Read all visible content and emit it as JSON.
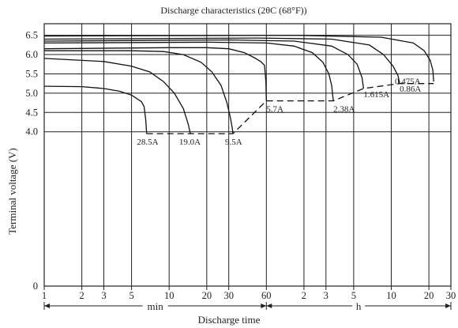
{
  "chart_data": {
    "type": "line",
    "title": "Discharge characteristics (20°C (68°F))",
    "title_display": "Discharge characteristics (2θC (68°F))",
    "ylabel": "Terminal    voltage (V)",
    "xlabel": "Discharge  time",
    "x_scale": "log",
    "x_unit_min": "min",
    "x_unit_h": "h",
    "xlim_minutes": [
      1,
      1800
    ],
    "ylim": [
      0,
      6.8
    ],
    "y_ticks": [
      {
        "v": 0,
        "label": "0"
      },
      {
        "v": 4.0,
        "label": "4.0"
      },
      {
        "v": 4.5,
        "label": "4.5"
      },
      {
        "v": 5.0,
        "label": "5.0"
      },
      {
        "v": 5.5,
        "label": "5.5"
      },
      {
        "v": 6.0,
        "label": "6.0"
      },
      {
        "v": 6.5,
        "label": "6.5"
      }
    ],
    "x_ticks": [
      {
        "minutes": 1,
        "label": "1"
      },
      {
        "minutes": 2,
        "label": "2"
      },
      {
        "minutes": 3,
        "label": "3"
      },
      {
        "minutes": 5,
        "label": "5"
      },
      {
        "minutes": 10,
        "label": "10"
      },
      {
        "minutes": 20,
        "label": "20"
      },
      {
        "minutes": 30,
        "label": "30"
      },
      {
        "minutes": 60,
        "label": "60"
      },
      {
        "minutes": 120,
        "label": "2"
      },
      {
        "minutes": 180,
        "label": "3"
      },
      {
        "minutes": 300,
        "label": "5"
      },
      {
        "minutes": 600,
        "label": "10"
      },
      {
        "minutes": 1200,
        "label": "20"
      },
      {
        "minutes": 1800,
        "label": "30"
      }
    ],
    "grid": true,
    "series": [
      {
        "name": "28.5A",
        "points": [
          [
            1,
            5.18
          ],
          [
            2,
            5.17
          ],
          [
            3,
            5.12
          ],
          [
            4,
            5.05
          ],
          [
            5,
            4.95
          ],
          [
            6,
            4.78
          ],
          [
            6.3,
            4.65
          ],
          [
            6.5,
            4.3
          ],
          [
            6.6,
            3.95
          ]
        ],
        "label_at": [
          6.2,
          3.75
        ]
      },
      {
        "name": "19.0A",
        "points": [
          [
            1,
            5.9
          ],
          [
            3,
            5.82
          ],
          [
            5,
            5.7
          ],
          [
            7,
            5.55
          ],
          [
            9,
            5.3
          ],
          [
            11,
            5.0
          ],
          [
            13,
            4.6
          ],
          [
            14.2,
            4.2
          ],
          [
            14.8,
            3.95
          ]
        ],
        "label_at": [
          13.5,
          3.75
        ]
      },
      {
        "name": "9.5A",
        "points": [
          [
            1,
            6.1
          ],
          [
            5,
            6.1
          ],
          [
            9,
            6.08
          ],
          [
            13,
            6.0
          ],
          [
            18,
            5.8
          ],
          [
            22,
            5.55
          ],
          [
            26,
            5.2
          ],
          [
            29,
            4.75
          ],
          [
            31,
            4.35
          ],
          [
            32,
            4.1
          ],
          [
            32.4,
            3.95
          ]
        ],
        "label_at": [
          31.5,
          3.75
        ]
      },
      {
        "name": "5.7A",
        "points": [
          [
            1,
            6.15
          ],
          [
            10,
            6.18
          ],
          [
            20,
            6.18
          ],
          [
            30,
            6.15
          ],
          [
            40,
            6.05
          ],
          [
            48,
            5.92
          ],
          [
            54,
            5.82
          ],
          [
            58,
            5.72
          ],
          [
            59.5,
            5.3
          ],
          [
            60,
            4.8
          ]
        ],
        "label_at": [
          60,
          4.6
        ]
      },
      {
        "name": "2.38A",
        "points": [
          [
            1,
            6.3
          ],
          [
            20,
            6.32
          ],
          [
            60,
            6.3
          ],
          [
            100,
            6.22
          ],
          [
            140,
            6.05
          ],
          [
            170,
            5.8
          ],
          [
            190,
            5.5
          ],
          [
            200,
            5.2
          ],
          [
            206,
            4.8
          ]
        ],
        "label_at": [
          206,
          4.6
        ]
      },
      {
        "name": "1.615A",
        "points": [
          [
            1,
            6.35
          ],
          [
            30,
            6.38
          ],
          [
            100,
            6.35
          ],
          [
            200,
            6.22
          ],
          [
            270,
            6.0
          ],
          [
            320,
            5.75
          ],
          [
            350,
            5.4
          ],
          [
            360,
            5.12
          ]
        ],
        "label_at": [
          360,
          4.98
        ]
      },
      {
        "name": "0.86A",
        "points": [
          [
            1,
            6.4
          ],
          [
            50,
            6.43
          ],
          [
            200,
            6.4
          ],
          [
            400,
            6.25
          ],
          [
            520,
            6.0
          ],
          [
            620,
            5.7
          ],
          [
            680,
            5.45
          ],
          [
            700,
            5.25
          ]
        ],
        "label_at": [
          700,
          5.12
        ]
      },
      {
        "name": "0.475A",
        "points": [
          [
            1,
            6.48
          ],
          [
            100,
            6.5
          ],
          [
            500,
            6.45
          ],
          [
            900,
            6.3
          ],
          [
            1100,
            6.1
          ],
          [
            1230,
            5.85
          ],
          [
            1290,
            5.6
          ],
          [
            1310,
            5.3
          ]
        ],
        "label_at": [
          640,
          5.32
        ]
      }
    ],
    "cutoff_line": [
      [
        6.6,
        3.95
      ],
      [
        14.8,
        3.95
      ],
      [
        32.4,
        3.95
      ],
      [
        60,
        4.8
      ],
      [
        206,
        4.8
      ],
      [
        360,
        5.12
      ],
      [
        700,
        5.25
      ],
      [
        1310,
        5.25
      ]
    ]
  }
}
